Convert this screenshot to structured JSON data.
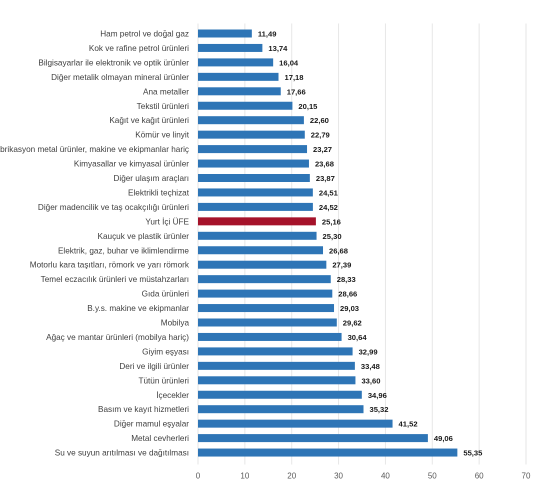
{
  "chart_data": {
    "type": "bar",
    "orientation": "horizontal",
    "categories": [
      "Ham petrol ve doğal gaz",
      "Kok ve rafine petrol ürünleri",
      "Bilgisayarlar ile elektronik ve optik ürünler",
      "Diğer metalik olmayan mineral ürünler",
      "Ana metaller",
      "Tekstil ürünleri",
      "Kağıt ve kağıt ürünleri",
      "Kömür ve linyit",
      "Fabrikasyon metal ürünler, makine ve ekipmanlar hariç",
      "Kimyasallar ve kimyasal ürünler",
      "Diğer ulaşım araçları",
      "Elektrikli teçhizat",
      "Diğer madencilik ve taş ocakçılığı ürünleri",
      "Yurt İçi ÜFE",
      "Kauçuk ve plastik ürünler",
      "Elektrik, gaz, buhar ve iklimlendirme",
      "Motorlu kara taşıtları, römork ve yarı römork",
      "Temel eczacılık ürünleri ve müstahzarları",
      "Gıda ürünleri",
      "B.y.s. makine ve ekipmanlar",
      "Mobilya",
      "Ağaç ve mantar ürünleri (mobilya hariç)",
      "Giyim eşyası",
      "Deri ve ilgili ürünler",
      "Tütün ürünleri",
      "İçecekler",
      "Basım ve kayıt hizmetleri",
      "Diğer mamul eşyalar",
      "Metal cevherleri",
      "Su ve suyun arıtılması ve dağıtılması"
    ],
    "values": [
      11.49,
      13.74,
      16.04,
      17.18,
      17.66,
      20.15,
      22.6,
      22.79,
      23.27,
      23.68,
      23.87,
      24.51,
      24.52,
      25.16,
      25.3,
      26.68,
      27.39,
      28.33,
      28.66,
      29.03,
      29.62,
      30.64,
      32.99,
      33.48,
      33.6,
      34.96,
      35.32,
      41.52,
      49.06,
      55.35
    ],
    "value_labels": [
      "11,49",
      "13,74",
      "16,04",
      "17,18",
      "17,66",
      "20,15",
      "22,60",
      "22,79",
      "23,27",
      "23,68",
      "23,87",
      "24,51",
      "24,52",
      "25,16",
      "25,30",
      "26,68",
      "27,39",
      "28,33",
      "28,66",
      "29,03",
      "29,62",
      "30,64",
      "32,99",
      "33,48",
      "33,60",
      "34,96",
      "35,32",
      "41,52",
      "49,06",
      "55,35"
    ],
    "highlight_index": 13,
    "xlim": [
      0,
      70
    ],
    "xticks": [
      0,
      10,
      20,
      30,
      40,
      50,
      60,
      70
    ],
    "title": "",
    "xlabel": "",
    "ylabel": "",
    "grid": "vertical",
    "legend": "none",
    "colors": {
      "bar": "#2e75b6",
      "highlight": "#a5122a"
    }
  }
}
